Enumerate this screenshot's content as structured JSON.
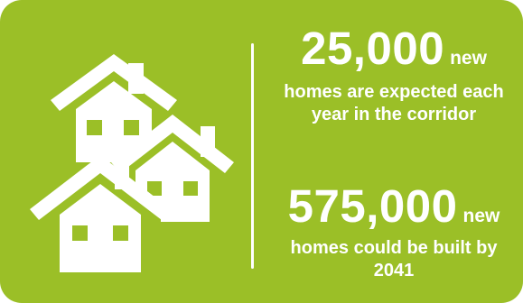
{
  "colors": {
    "background": "#9bbf27",
    "foreground": "#ffffff"
  },
  "illustration": {
    "icon": "houses-icon"
  },
  "stats": [
    {
      "number": "25,000",
      "unit": "new",
      "description": "homes are expected each year in the corridor"
    },
    {
      "number": "575,000",
      "unit": "new",
      "description": "homes could be built by 2041"
    }
  ]
}
